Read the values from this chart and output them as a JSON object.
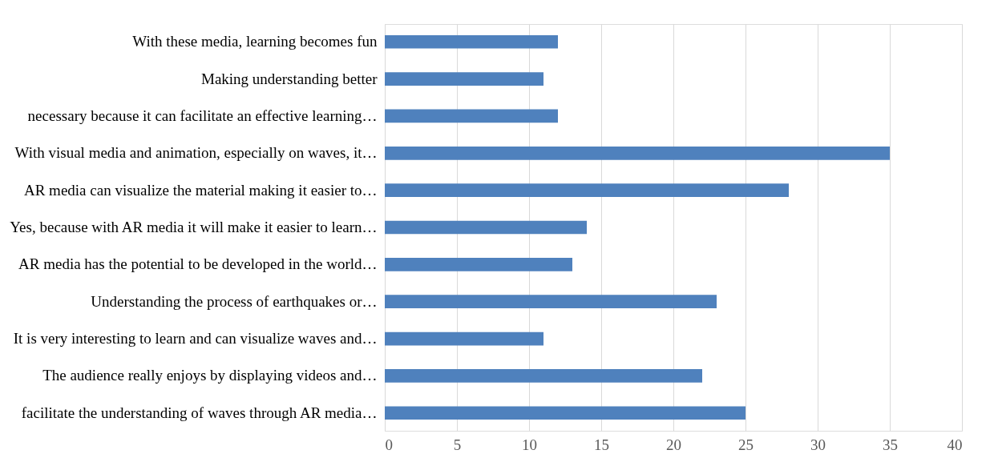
{
  "chart_data": {
    "type": "bar",
    "orientation": "horizontal",
    "categories": [
      "With these media, learning becomes fun",
      "Making understanding better",
      "necessary because it can facilitate an effective learning…",
      "With visual media and animation, especially on waves, it…",
      "AR media can visualize the material making it easier to…",
      "Yes, because with AR media it will make it easier to learn…",
      "AR media has the potential to be developed in the world…",
      "Understanding the process of earthquakes or…",
      "It is very interesting to learn and can visualize waves and…",
      "The audience really enjoys by displaying videos and…",
      "facilitate the understanding of waves through AR media…"
    ],
    "values": [
      12,
      11,
      12,
      35,
      28,
      14,
      13,
      23,
      11,
      22,
      25
    ],
    "color": "#4f81bd",
    "xlim": [
      0,
      40
    ],
    "xticks": [
      0,
      5,
      10,
      15,
      20,
      25,
      30,
      35,
      40
    ],
    "grid": "x"
  }
}
